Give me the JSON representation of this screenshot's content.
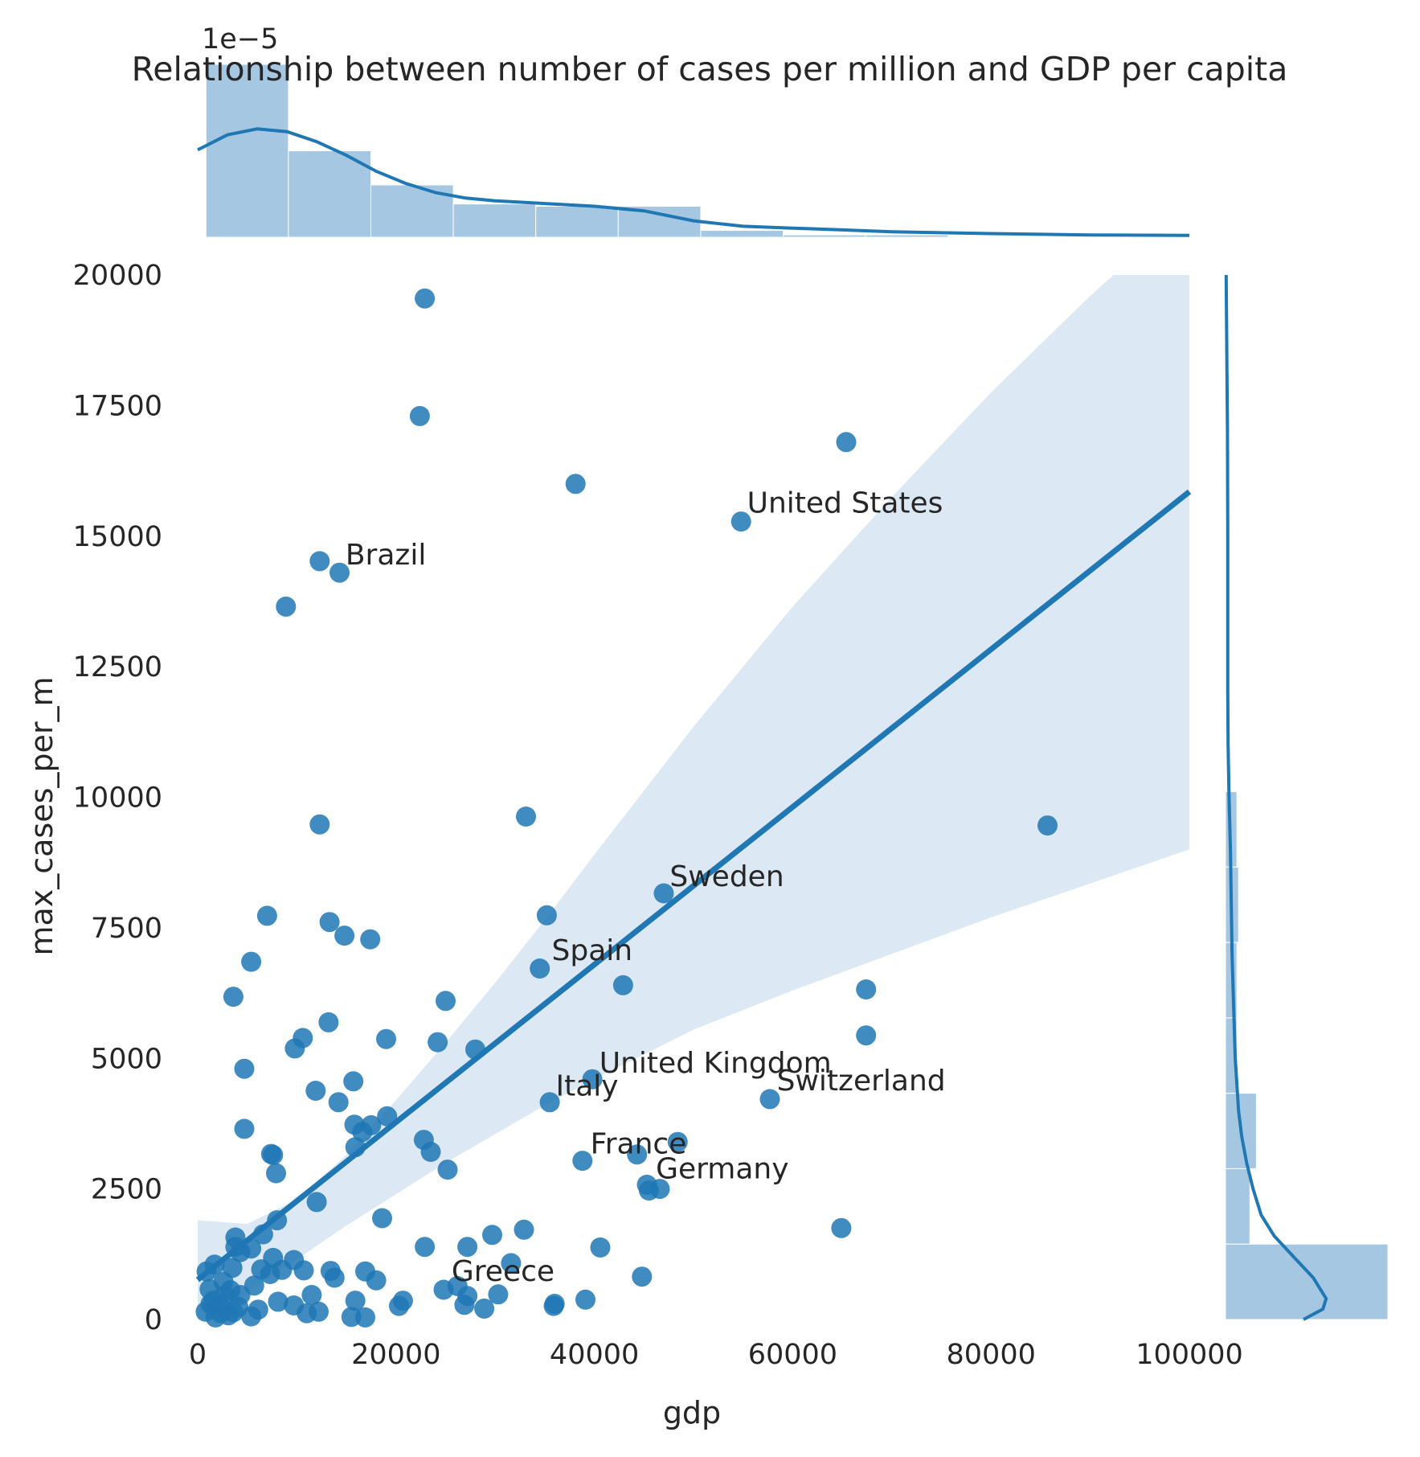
{
  "colors": {
    "point": "#1f77b4",
    "regression_line": "#1f77b4",
    "ci_band": "#dce8f3",
    "hist_bar": "#a5c7e1",
    "kde": "#1f77b4",
    "text": "#262626"
  },
  "chart_data": {
    "type": "scatter",
    "title": "Relationship between number of cases per million and GDP per capita",
    "xlabel": "gdp",
    "ylabel": "max_cases_per_m",
    "xlim": [
      0,
      100000
    ],
    "ylim": [
      0,
      20000
    ],
    "x_ticks": [
      "0",
      "20000",
      "40000",
      "60000",
      "80000",
      "100000"
    ],
    "y_ticks": [
      "0",
      "2500",
      "5000",
      "7500",
      "10000",
      "12500",
      "15000",
      "17500",
      "20000"
    ],
    "grid": false,
    "marginal_offset_label": "1e−5",
    "points": [
      [
        22900,
        19550
      ],
      [
        22400,
        17300
      ],
      [
        65400,
        16800
      ],
      [
        38100,
        16000
      ],
      [
        54800,
        15280
      ],
      [
        12300,
        14520
      ],
      [
        14300,
        14300
      ],
      [
        8900,
        13650
      ],
      [
        12300,
        9480
      ],
      [
        33100,
        9630
      ],
      [
        85700,
        9460
      ],
      [
        47000,
        8160
      ],
      [
        35200,
        7740
      ],
      [
        7000,
        7730
      ],
      [
        13300,
        7610
      ],
      [
        14800,
        7350
      ],
      [
        17400,
        7280
      ],
      [
        5400,
        6850
      ],
      [
        34500,
        6720
      ],
      [
        42900,
        6400
      ],
      [
        67400,
        6320
      ],
      [
        3600,
        6180
      ],
      [
        25000,
        6100
      ],
      [
        13200,
        5690
      ],
      [
        67400,
        5440
      ],
      [
        10600,
        5390
      ],
      [
        19000,
        5370
      ],
      [
        24200,
        5310
      ],
      [
        9800,
        5190
      ],
      [
        28000,
        5170
      ],
      [
        4700,
        4800
      ],
      [
        39800,
        4600
      ],
      [
        15700,
        4560
      ],
      [
        11900,
        4380
      ],
      [
        57700,
        4220
      ],
      [
        14200,
        4160
      ],
      [
        35500,
        4160
      ],
      [
        19100,
        3890
      ],
      [
        17500,
        3720
      ],
      [
        15800,
        3730
      ],
      [
        4700,
        3650
      ],
      [
        16600,
        3590
      ],
      [
        22800,
        3440
      ],
      [
        48400,
        3400
      ],
      [
        15900,
        3300
      ],
      [
        23500,
        3210
      ],
      [
        7400,
        3170
      ],
      [
        7600,
        3150
      ],
      [
        44300,
        3160
      ],
      [
        38800,
        3040
      ],
      [
        25200,
        2870
      ],
      [
        7900,
        2800
      ],
      [
        45300,
        2580
      ],
      [
        46600,
        2500
      ],
      [
        45500,
        2470
      ],
      [
        12000,
        2250
      ],
      [
        18600,
        1940
      ],
      [
        8000,
        1900
      ],
      [
        64900,
        1750
      ],
      [
        32900,
        1720
      ],
      [
        6600,
        1630
      ],
      [
        29700,
        1620
      ],
      [
        3800,
        1570
      ],
      [
        40600,
        1380
      ],
      [
        27200,
        1390
      ],
      [
        22900,
        1390
      ],
      [
        3800,
        1390
      ],
      [
        5400,
        1360
      ],
      [
        4300,
        1290
      ],
      [
        9700,
        1140
      ],
      [
        7600,
        1180
      ],
      [
        31600,
        1080
      ],
      [
        1700,
        1050
      ],
      [
        3500,
        990
      ],
      [
        6400,
        960
      ],
      [
        8500,
        950
      ],
      [
        10700,
        940
      ],
      [
        13400,
        930
      ],
      [
        16900,
        920
      ],
      [
        900,
        920
      ],
      [
        7300,
        870
      ],
      [
        13800,
        800
      ],
      [
        18000,
        750
      ],
      [
        2600,
        720
      ],
      [
        5700,
        650
      ],
      [
        1200,
        580
      ],
      [
        3300,
        560
      ],
      [
        24800,
        570
      ],
      [
        44800,
        820
      ],
      [
        26200,
        640
      ],
      [
        4300,
        470
      ],
      [
        11500,
        470
      ],
      [
        27200,
        450
      ],
      [
        30300,
        480
      ],
      [
        39100,
        380
      ],
      [
        1600,
        360
      ],
      [
        8100,
        340
      ],
      [
        2200,
        280
      ],
      [
        15900,
        360
      ],
      [
        20700,
        360
      ],
      [
        26900,
        280
      ],
      [
        28900,
        210
      ],
      [
        36000,
        300
      ],
      [
        35900,
        260
      ],
      [
        9700,
        270
      ],
      [
        6100,
        190
      ],
      [
        3600,
        140
      ],
      [
        2300,
        120
      ],
      [
        12200,
        150
      ],
      [
        800,
        150
      ],
      [
        11000,
        120
      ],
      [
        20300,
        260
      ],
      [
        1800,
        40
      ],
      [
        5400,
        60
      ],
      [
        15500,
        50
      ],
      [
        16900,
        40
      ],
      [
        4100,
        240
      ],
      [
        2700,
        460
      ],
      [
        1300,
        300
      ],
      [
        3100,
        80
      ]
    ],
    "annotations": [
      {
        "label": "United States",
        "x": 55400,
        "y": 15450
      },
      {
        "label": "Brazil",
        "x": 14900,
        "y": 14460
      },
      {
        "label": "Sweden",
        "x": 47600,
        "y": 8300
      },
      {
        "label": "Spain",
        "x": 35700,
        "y": 6880
      },
      {
        "label": "United Kingdom",
        "x": 40500,
        "y": 4730
      },
      {
        "label": "Switzerland",
        "x": 58400,
        "y": 4390
      },
      {
        "label": "Italy",
        "x": 36100,
        "y": 4290
      },
      {
        "label": "France",
        "x": 39600,
        "y": 3180
      },
      {
        "label": "Germany",
        "x": 46200,
        "y": 2700
      },
      {
        "label": "Greece",
        "x": 25600,
        "y": 740
      }
    ],
    "regression": {
      "x": [
        0,
        100000
      ],
      "y": [
        760,
        15850
      ]
    },
    "confidence_band": {
      "x": [
        0,
        5000,
        10000,
        15000,
        20000,
        25000,
        30000,
        35000,
        40000,
        50000,
        60000,
        70000,
        80000,
        90000,
        100000
      ],
      "upper": [
        1900,
        1830,
        2300,
        3150,
        4200,
        5300,
        6450,
        7650,
        8900,
        11350,
        13650,
        15750,
        17750,
        19600,
        21300
      ],
      "lower": [
        -400,
        540,
        1150,
        1800,
        2400,
        3000,
        3550,
        4100,
        4600,
        5550,
        6300,
        7000,
        7700,
        8350,
        9000
      ]
    },
    "marginal_x_histogram": {
      "bin_edges": [
        834,
        9149,
        17464,
        25779,
        34094,
        42409,
        50724,
        59039,
        67354,
        75669,
        83984,
        100000
      ],
      "densities": [
        3.8,
        1.9,
        1.15,
        0.73,
        0.68,
        0.68,
        0.15,
        0.05,
        0.05,
        0.0,
        0.0
      ]
    },
    "marginal_x_kde": {
      "x": [
        0,
        3000,
        6000,
        9000,
        12000,
        15000,
        18000,
        21000,
        24000,
        27000,
        30000,
        35000,
        40000,
        45000,
        50000,
        55000,
        60000,
        65000,
        70000,
        80000,
        90000,
        100000
      ],
      "density": [
        1.92,
        2.25,
        2.38,
        2.32,
        2.1,
        1.8,
        1.45,
        1.18,
        0.98,
        0.86,
        0.8,
        0.74,
        0.68,
        0.58,
        0.36,
        0.24,
        0.2,
        0.16,
        0.12,
        0.08,
        0.05,
        0.04
      ]
    },
    "marginal_y_histogram": {
      "bin_edges": [
        0,
        1444,
        2888,
        4332,
        5776,
        7220,
        8664,
        10108
      ],
      "widths": [
        1.0,
        0.15,
        0.19,
        0.07,
        0.07,
        0.08,
        0.07
      ]
    },
    "marginal_y_kde": {
      "y": [
        0,
        200,
        400,
        800,
        1200,
        1600,
        2000,
        2500,
        3000,
        3500,
        4000,
        5000,
        6000,
        7000,
        8000,
        9000,
        10000,
        11000,
        12000,
        13000,
        15000,
        17000,
        20000
      ],
      "density": [
        0.48,
        0.6,
        0.62,
        0.54,
        0.42,
        0.3,
        0.22,
        0.17,
        0.13,
        0.1,
        0.08,
        0.06,
        0.05,
        0.04,
        0.035,
        0.03,
        0.022,
        0.016,
        0.014,
        0.014,
        0.014,
        0.012,
        0.004
      ]
    }
  }
}
